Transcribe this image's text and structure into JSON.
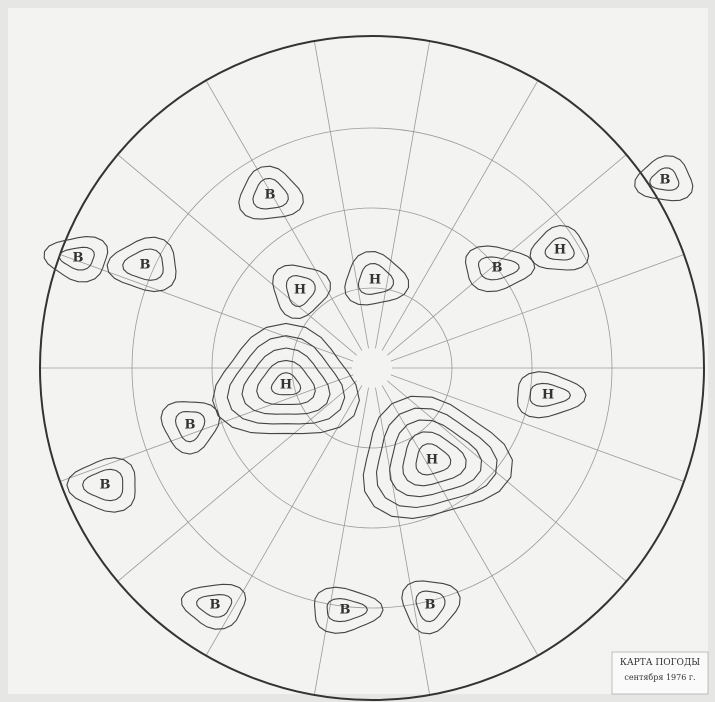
{
  "map": {
    "title": "КАРТА ПОГОДЫ",
    "date": "сентября 1976 г.",
    "centers": [
      {
        "label": "Н"
      },
      {
        "label": "Н"
      },
      {
        "label": "В"
      },
      {
        "label": "В"
      },
      {
        "label": "В"
      },
      {
        "label": "В"
      },
      {
        "label": "Н"
      },
      {
        "label": "Н"
      },
      {
        "label": "В"
      },
      {
        "label": "В"
      },
      {
        "label": "В"
      },
      {
        "label": "В"
      },
      {
        "label": "В"
      },
      {
        "label": "В"
      },
      {
        "label": "Н"
      },
      {
        "label": "Н"
      }
    ]
  }
}
